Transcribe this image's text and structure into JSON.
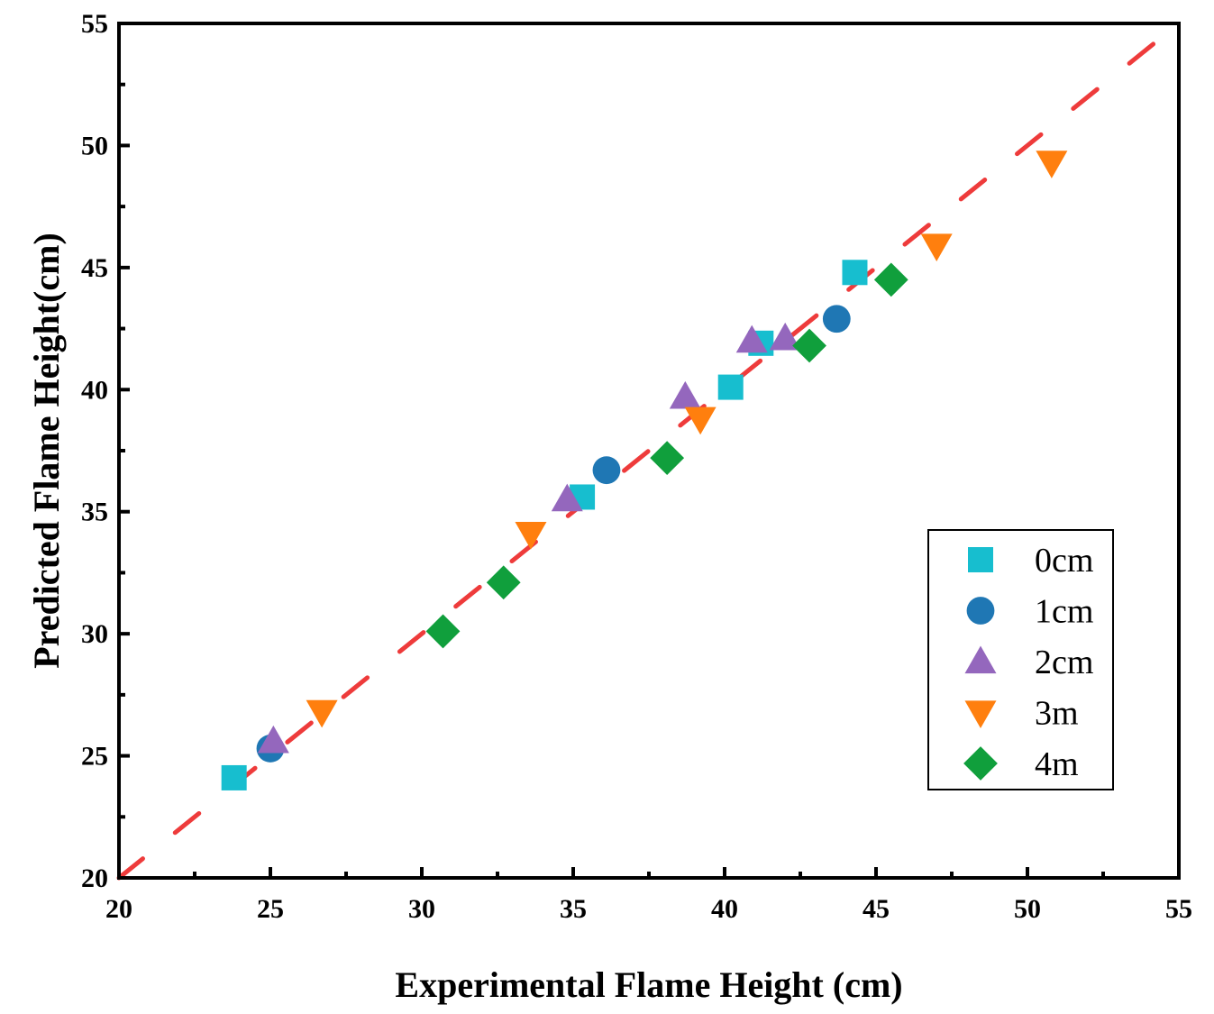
{
  "chart_data": {
    "type": "scatter",
    "title": "",
    "xlabel": "Experimental Flame Height (cm)",
    "ylabel": "Predicted Flame Height(cm)",
    "xlim": [
      20,
      55
    ],
    "ylim": [
      20,
      55
    ],
    "xticks": [
      "20",
      "25",
      "30",
      "35",
      "40",
      "45",
      "50",
      "55"
    ],
    "yticks": [
      "20",
      "25",
      "30",
      "35",
      "40",
      "45",
      "50",
      "55"
    ],
    "grid": false,
    "legend_position": "right",
    "reference_line": {
      "name": "y = x",
      "color": "#ee3b3b",
      "style": "dashed",
      "x": [
        20,
        55
      ],
      "y": [
        20,
        55
      ]
    },
    "series": [
      {
        "name": "0cm",
        "marker": "square",
        "color": "#17becf",
        "points": [
          [
            23.8,
            24.1
          ],
          [
            35.3,
            35.6
          ],
          [
            40.2,
            40.1
          ],
          [
            41.2,
            41.9
          ],
          [
            44.3,
            44.8
          ]
        ]
      },
      {
        "name": "1cm",
        "marker": "circle",
        "color": "#1f77b4",
        "points": [
          [
            25.0,
            25.3
          ],
          [
            36.1,
            36.7
          ],
          [
            43.7,
            42.9
          ]
        ]
      },
      {
        "name": "2cm",
        "marker": "triangle-up",
        "color": "#9467bd",
        "points": [
          [
            25.1,
            25.6
          ],
          [
            34.8,
            35.5
          ],
          [
            38.7,
            39.7
          ],
          [
            40.9,
            42.0
          ],
          [
            42.0,
            42.1
          ]
        ]
      },
      {
        "name": "3m",
        "marker": "triangle-down",
        "color": "#ff7f0e",
        "points": [
          [
            26.7,
            26.8
          ],
          [
            33.6,
            34.1
          ],
          [
            39.2,
            38.8
          ],
          [
            47.0,
            45.9
          ],
          [
            50.8,
            49.3
          ]
        ]
      },
      {
        "name": "4m",
        "marker": "diamond",
        "color": "#109f3c",
        "points": [
          [
            30.7,
            30.1
          ],
          [
            32.7,
            32.1
          ],
          [
            38.1,
            37.2
          ],
          [
            42.8,
            41.8
          ],
          [
            45.5,
            44.5
          ]
        ]
      }
    ]
  }
}
